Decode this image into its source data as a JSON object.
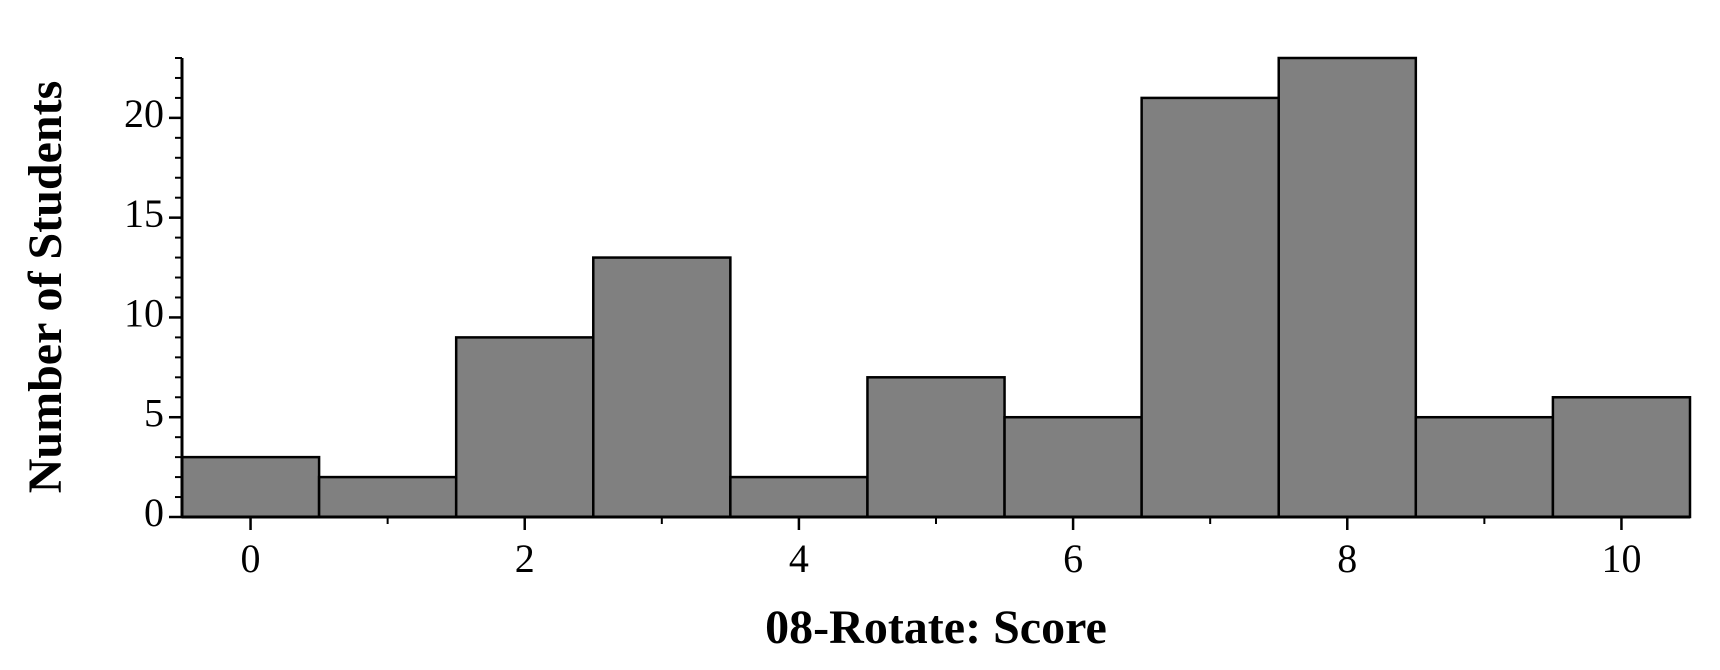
{
  "chart_data": {
    "type": "histogram",
    "xlabel": "08-Rotate: Score",
    "ylabel": "Number of Students",
    "bins": [
      -0.5,
      0.5,
      1.5,
      2.5,
      3.5,
      4.5,
      5.5,
      6.5,
      7.5,
      8.5,
      9.5,
      10.5
    ],
    "values": [
      3,
      2,
      9,
      13,
      2,
      7,
      5,
      21,
      23,
      5,
      6
    ],
    "color": "#808080",
    "xlim": [
      -0.5,
      10.5
    ],
    "xticks": [
      0,
      2,
      4,
      6,
      8,
      10
    ],
    "xminorticks": [
      1,
      3,
      5,
      7,
      9
    ],
    "ylim": [
      0,
      23
    ],
    "yticks": [
      0,
      5,
      10,
      15,
      20
    ],
    "yminorticks": [
      1,
      2,
      3,
      4,
      6,
      7,
      8,
      9,
      11,
      12,
      13,
      14,
      16,
      17,
      18,
      19,
      21,
      22,
      23
    ]
  }
}
